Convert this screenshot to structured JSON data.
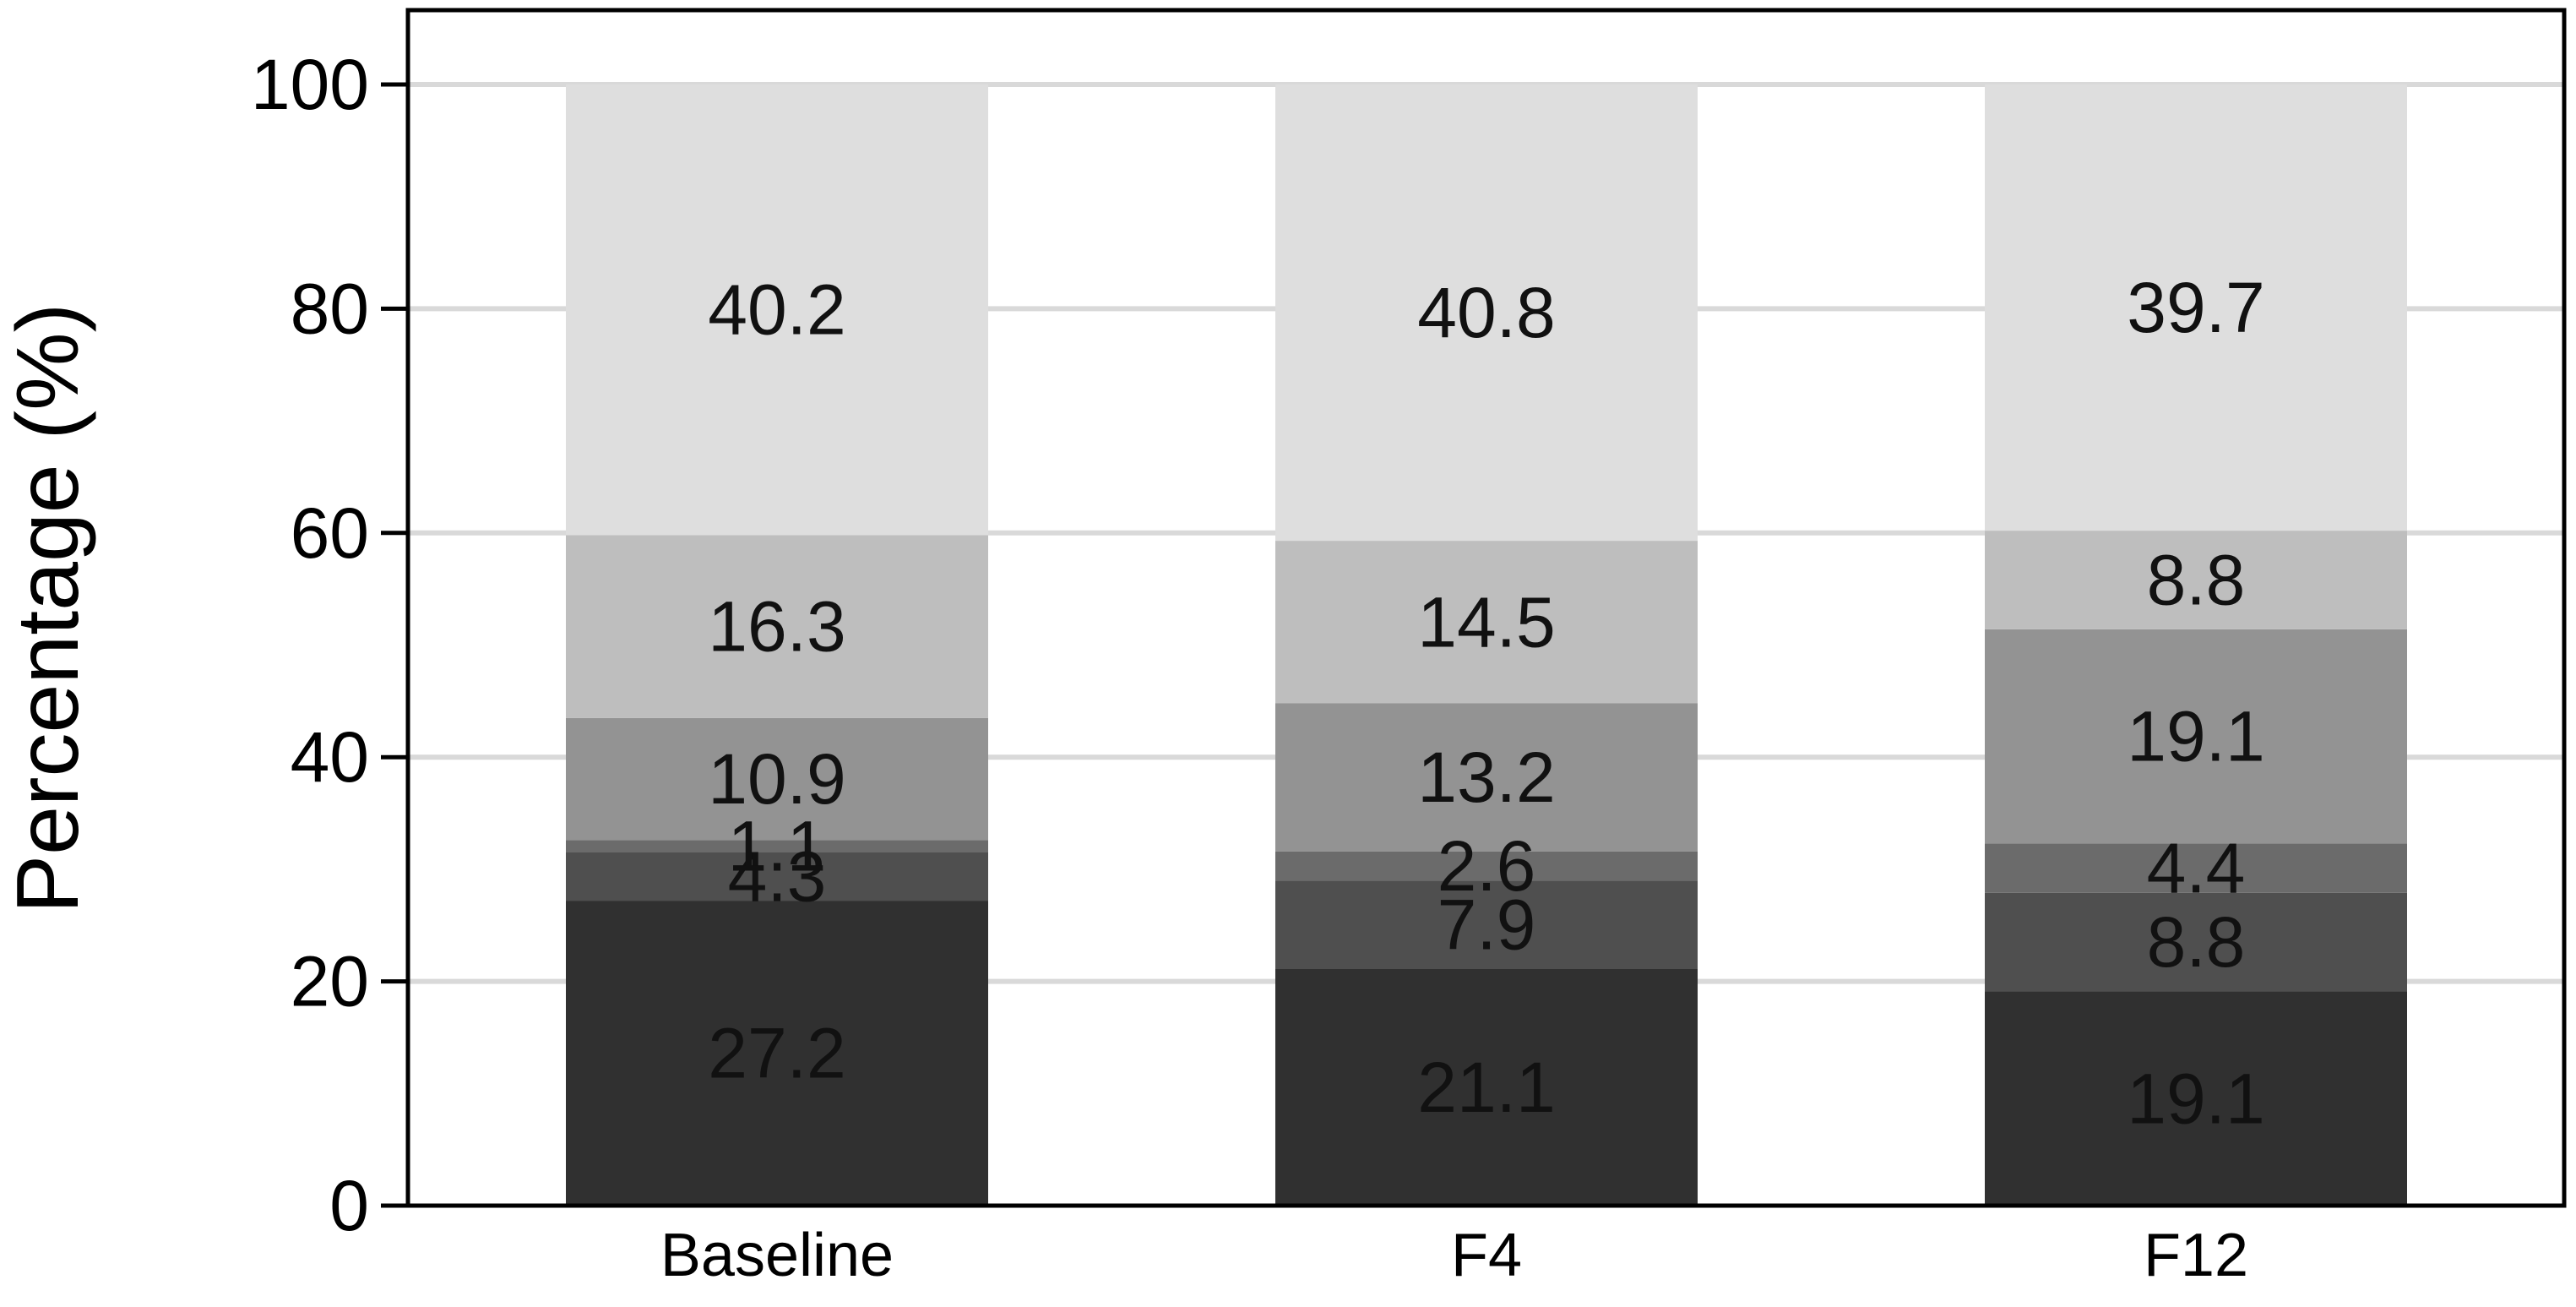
{
  "chart_data": {
    "type": "bar",
    "stacked": true,
    "title": "",
    "xlabel": "",
    "ylabel": "Percentage (%)",
    "ylim": [
      0,
      100
    ],
    "yticks": [
      0,
      20,
      40,
      60,
      80,
      100
    ],
    "grid": true,
    "categories": [
      "Baseline",
      "F4",
      "F12"
    ],
    "series": [
      {
        "values": [
          27.2,
          21.1,
          19.1
        ],
        "color": "#303030"
      },
      {
        "values": [
          4.3,
          7.9,
          8.8
        ],
        "color": "#4f4f4f"
      },
      {
        "values": [
          1.1,
          2.6,
          4.4
        ],
        "color": "#6b6b6b"
      },
      {
        "values": [
          10.9,
          13.2,
          19.1
        ],
        "color": "#939393"
      },
      {
        "values": [
          16.3,
          14.5,
          8.8
        ],
        "color": "#bebebe"
      },
      {
        "values": [
          40.2,
          40.8,
          39.7
        ],
        "color": "#dedede"
      }
    ],
    "bar_tops": [
      100,
      100,
      100
    ],
    "label_color": "#111111",
    "grid_color": "#d9d9d9",
    "axis_color": "#000000"
  }
}
